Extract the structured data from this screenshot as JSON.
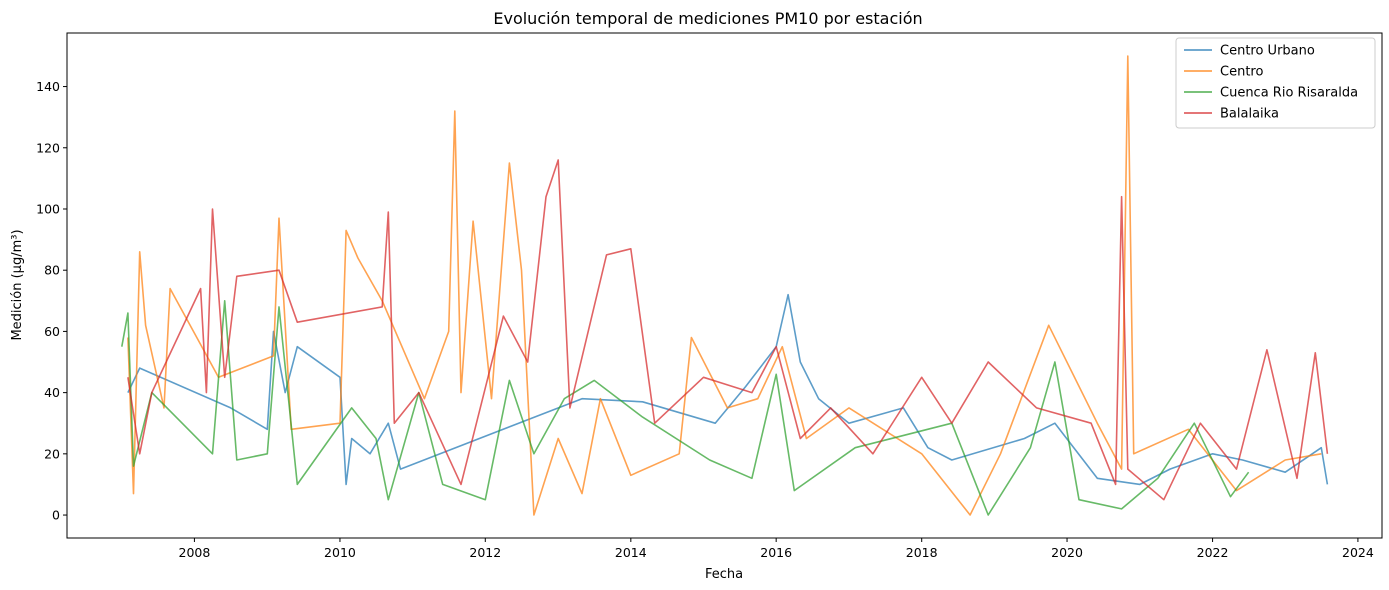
{
  "chart_data": {
    "type": "line",
    "title": "Evolución temporal de mediciones PM10 por estación",
    "xlabel": "Fecha",
    "ylabel": "Medición (µg/m³)",
    "x_type": "date",
    "xlim": [
      "2006-04-01",
      "2024-05-01"
    ],
    "ylim": [
      -7.5,
      157.5
    ],
    "x_ticks": [
      "2008",
      "2010",
      "2012",
      "2014",
      "2016",
      "2018",
      "2020",
      "2022",
      "2024"
    ],
    "y_ticks": [
      0,
      20,
      40,
      60,
      80,
      100,
      120,
      140
    ],
    "grid": false,
    "legend_position": "top-right",
    "series": [
      {
        "name": "Centro Urbano",
        "color": "#1f77b4",
        "points": [
          [
            "2007-02-01",
            40
          ],
          [
            "2007-04-01",
            48
          ],
          [
            "2008-07-01",
            35
          ],
          [
            "2009-01-01",
            28
          ],
          [
            "2009-02-01",
            60
          ],
          [
            "2009-04-01",
            40
          ],
          [
            "2009-06-01",
            55
          ],
          [
            "2010-01-01",
            45
          ],
          [
            "2010-02-01",
            10
          ],
          [
            "2010-03-01",
            25
          ],
          [
            "2010-06-01",
            20
          ],
          [
            "2010-09-01",
            30
          ],
          [
            "2010-11-01",
            15
          ],
          [
            "2013-05-01",
            38
          ],
          [
            "2014-03-01",
            37
          ],
          [
            "2015-03-01",
            30
          ],
          [
            "2015-08-01",
            42
          ],
          [
            "2016-01-01",
            55
          ],
          [
            "2016-03-01",
            72
          ],
          [
            "2016-05-01",
            50
          ],
          [
            "2016-08-01",
            38
          ],
          [
            "2017-01-01",
            30
          ],
          [
            "2017-10-01",
            35
          ],
          [
            "2018-02-01",
            22
          ],
          [
            "2018-06-01",
            18
          ],
          [
            "2019-06-01",
            25
          ],
          [
            "2019-11-01",
            30
          ],
          [
            "2020-06-01",
            12
          ],
          [
            "2021-01-01",
            10
          ],
          [
            "2021-06-01",
            15
          ],
          [
            "2022-01-01",
            20
          ],
          [
            "2022-06-01",
            18
          ],
          [
            "2023-01-01",
            14
          ],
          [
            "2023-07-01",
            22
          ],
          [
            "2023-08-01",
            10
          ]
        ]
      },
      {
        "name": "Centro",
        "color": "#ff7f0e",
        "points": [
          [
            "2007-02-01",
            58
          ],
          [
            "2007-03-01",
            7
          ],
          [
            "2007-04-01",
            86
          ],
          [
            "2007-05-01",
            62
          ],
          [
            "2007-08-01",
            35
          ],
          [
            "2007-09-01",
            74
          ],
          [
            "2008-05-01",
            45
          ],
          [
            "2009-02-01",
            52
          ],
          [
            "2009-03-01",
            97
          ],
          [
            "2009-05-01",
            28
          ],
          [
            "2010-01-01",
            30
          ],
          [
            "2010-02-01",
            93
          ],
          [
            "2010-04-01",
            84
          ],
          [
            "2010-08-01",
            70
          ],
          [
            "2011-03-01",
            38
          ],
          [
            "2011-07-01",
            60
          ],
          [
            "2011-08-01",
            132
          ],
          [
            "2011-09-01",
            40
          ],
          [
            "2011-11-01",
            96
          ],
          [
            "2012-02-01",
            38
          ],
          [
            "2012-05-01",
            115
          ],
          [
            "2012-07-01",
            80
          ],
          [
            "2012-09-01",
            0
          ],
          [
            "2013-01-01",
            25
          ],
          [
            "2013-05-01",
            7
          ],
          [
            "2013-08-01",
            38
          ],
          [
            "2014-01-01",
            13
          ],
          [
            "2014-09-01",
            20
          ],
          [
            "2014-11-01",
            58
          ],
          [
            "2015-05-01",
            35
          ],
          [
            "2015-10-01",
            38
          ],
          [
            "2016-02-01",
            55
          ],
          [
            "2016-06-01",
            25
          ],
          [
            "2017-01-01",
            35
          ],
          [
            "2018-01-01",
            20
          ],
          [
            "2018-09-01",
            0
          ],
          [
            "2019-02-01",
            20
          ],
          [
            "2019-10-01",
            62
          ],
          [
            "2020-06-01",
            30
          ],
          [
            "2020-10-01",
            15
          ],
          [
            "2020-11-01",
            150
          ],
          [
            "2020-12-01",
            20
          ],
          [
            "2021-09-01",
            28
          ],
          [
            "2022-05-01",
            8
          ],
          [
            "2023-01-01",
            18
          ],
          [
            "2023-07-01",
            20
          ]
        ]
      },
      {
        "name": "Cuenca Rio Risaralda",
        "color": "#2ca02c",
        "points": [
          [
            "2007-01-01",
            55
          ],
          [
            "2007-02-01",
            66
          ],
          [
            "2007-03-01",
            16
          ],
          [
            "2007-06-01",
            40
          ],
          [
            "2008-04-01",
            20
          ],
          [
            "2008-06-01",
            70
          ],
          [
            "2008-08-01",
            18
          ],
          [
            "2009-01-01",
            20
          ],
          [
            "2009-03-01",
            68
          ],
          [
            "2009-06-01",
            10
          ],
          [
            "2010-03-01",
            35
          ],
          [
            "2010-07-01",
            25
          ],
          [
            "2010-09-01",
            5
          ],
          [
            "2011-02-01",
            40
          ],
          [
            "2011-06-01",
            10
          ],
          [
            "2012-01-01",
            5
          ],
          [
            "2012-05-01",
            44
          ],
          [
            "2012-09-01",
            20
          ],
          [
            "2013-02-01",
            38
          ],
          [
            "2013-07-01",
            44
          ],
          [
            "2014-03-01",
            32
          ],
          [
            "2015-02-01",
            18
          ],
          [
            "2015-09-01",
            12
          ],
          [
            "2016-01-01",
            46
          ],
          [
            "2016-04-01",
            8
          ],
          [
            "2017-02-01",
            22
          ],
          [
            "2018-06-01",
            30
          ],
          [
            "2018-12-01",
            0
          ],
          [
            "2019-07-01",
            22
          ],
          [
            "2019-11-01",
            50
          ],
          [
            "2020-03-01",
            5
          ],
          [
            "2020-10-01",
            2
          ],
          [
            "2021-04-01",
            12
          ],
          [
            "2021-10-01",
            30
          ],
          [
            "2022-04-01",
            6
          ],
          [
            "2022-07-01",
            14
          ]
        ]
      },
      {
        "name": "Balalaika",
        "color": "#d62728",
        "points": [
          [
            "2007-02-01",
            45
          ],
          [
            "2007-04-01",
            20
          ],
          [
            "2007-06-01",
            40
          ],
          [
            "2008-02-01",
            74
          ],
          [
            "2008-03-01",
            40
          ],
          [
            "2008-04-01",
            100
          ],
          [
            "2008-06-01",
            45
          ],
          [
            "2008-08-01",
            78
          ],
          [
            "2009-03-01",
            80
          ],
          [
            "2009-06-01",
            63
          ],
          [
            "2010-08-01",
            68
          ],
          [
            "2010-09-01",
            99
          ],
          [
            "2010-10-01",
            30
          ],
          [
            "2011-02-01",
            40
          ],
          [
            "2011-09-01",
            10
          ],
          [
            "2012-04-01",
            65
          ],
          [
            "2012-08-01",
            50
          ],
          [
            "2012-11-01",
            104
          ],
          [
            "2013-01-01",
            116
          ],
          [
            "2013-03-01",
            35
          ],
          [
            "2013-09-01",
            85
          ],
          [
            "2014-01-01",
            87
          ],
          [
            "2014-05-01",
            30
          ],
          [
            "2015-01-01",
            45
          ],
          [
            "2015-09-01",
            40
          ],
          [
            "2016-01-01",
            55
          ],
          [
            "2016-05-01",
            25
          ],
          [
            "2016-10-01",
            35
          ],
          [
            "2017-05-01",
            20
          ],
          [
            "2018-01-01",
            45
          ],
          [
            "2018-06-01",
            30
          ],
          [
            "2018-12-01",
            50
          ],
          [
            "2019-08-01",
            35
          ],
          [
            "2020-05-01",
            30
          ],
          [
            "2020-09-01",
            10
          ],
          [
            "2020-10-01",
            104
          ],
          [
            "2020-11-01",
            15
          ],
          [
            "2021-05-01",
            5
          ],
          [
            "2021-11-01",
            30
          ],
          [
            "2022-05-01",
            15
          ],
          [
            "2022-10-01",
            54
          ],
          [
            "2023-03-01",
            12
          ],
          [
            "2023-06-01",
            53
          ],
          [
            "2023-08-01",
            20
          ]
        ]
      }
    ]
  }
}
